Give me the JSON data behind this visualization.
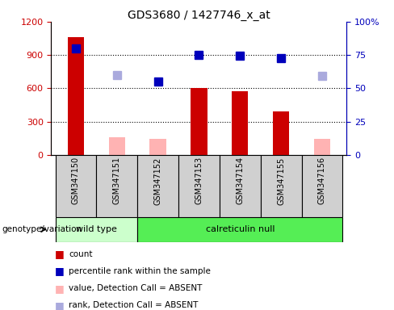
{
  "title": "GDS3680 / 1427746_x_at",
  "samples": [
    "GSM347150",
    "GSM347151",
    "GSM347152",
    "GSM347153",
    "GSM347154",
    "GSM347155",
    "GSM347156"
  ],
  "count_values": [
    1060,
    null,
    null,
    600,
    575,
    390,
    null
  ],
  "count_absent_values": [
    null,
    160,
    145,
    null,
    null,
    null,
    145
  ],
  "rank_values": [
    960,
    null,
    660,
    900,
    895,
    875,
    null
  ],
  "rank_absent_values": [
    null,
    720,
    null,
    null,
    null,
    null,
    710
  ],
  "ylim_left": [
    0,
    1200
  ],
  "ylim_right": [
    0,
    100
  ],
  "yticks_left": [
    0,
    300,
    600,
    900,
    1200
  ],
  "yticks_right": [
    0,
    25,
    50,
    75,
    100
  ],
  "yticklabels_left": [
    "0",
    "300",
    "600",
    "900",
    "1200"
  ],
  "yticklabels_right": [
    "0",
    "25",
    "50",
    "75",
    "100%"
  ],
  "color_count": "#cc0000",
  "color_count_absent": "#ffb3b3",
  "color_rank": "#0000bb",
  "color_rank_absent": "#aaaadd",
  "color_wildtype_bg": "#ccffcc",
  "color_calreticulin_bg": "#55ee55",
  "color_label_bg": "#d0d0d0",
  "wildtype_range": [
    0,
    1
  ],
  "calreticulin_range": [
    2,
    6
  ],
  "legend_items": [
    {
      "label": "count",
      "color": "#cc0000"
    },
    {
      "label": "percentile rank within the sample",
      "color": "#0000bb"
    },
    {
      "label": "value, Detection Call = ABSENT",
      "color": "#ffb3b3"
    },
    {
      "label": "rank, Detection Call = ABSENT",
      "color": "#aaaadd"
    }
  ]
}
